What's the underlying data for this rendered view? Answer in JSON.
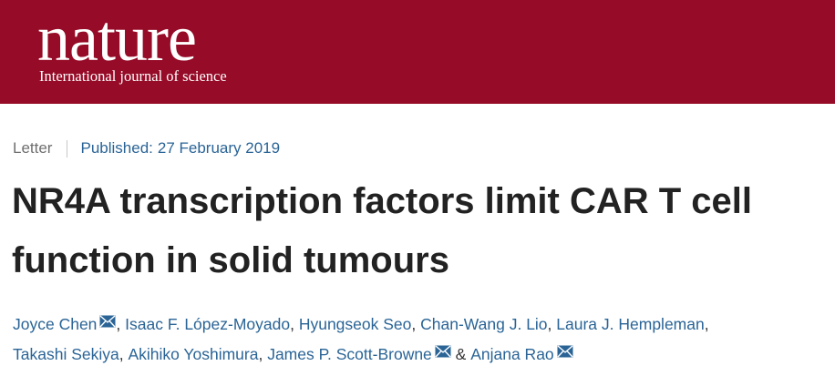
{
  "masthead": {
    "logo": "nature",
    "tagline": "International journal of science",
    "background_color": "#960b27"
  },
  "article": {
    "type": "Letter",
    "published_label": "Published:",
    "published_date": "27 February 2019",
    "title_line_1": "NR4A transcription factors limit CAR T cell",
    "title_line_2": "function in solid tumours",
    "authors_row_1": [
      {
        "name": "Joyce Chen",
        "contact_icon": "mail-icon"
      },
      {
        "sep": ", "
      },
      {
        "name": "Isaac F. López-Moyado"
      },
      {
        "sep": ", "
      },
      {
        "name": "Hyungseok Seo"
      },
      {
        "sep": ", "
      },
      {
        "name": "Chan-Wang J. Lio"
      },
      {
        "sep": ", "
      },
      {
        "name": "Laura J. Hempleman"
      },
      {
        "sep": ","
      }
    ],
    "authors_row_2": [
      {
        "name": "Takashi Sekiya"
      },
      {
        "sep": ", "
      },
      {
        "name": "Akihiko Yoshimura"
      },
      {
        "sep": ", "
      },
      {
        "name": "James P. Scott-Browne",
        "contact_icon": "mail-icon"
      },
      {
        "sep": " & "
      },
      {
        "name": "Anjana Rao",
        "contact_icon": "mail-icon"
      }
    ],
    "link_color": "#2a6496"
  }
}
